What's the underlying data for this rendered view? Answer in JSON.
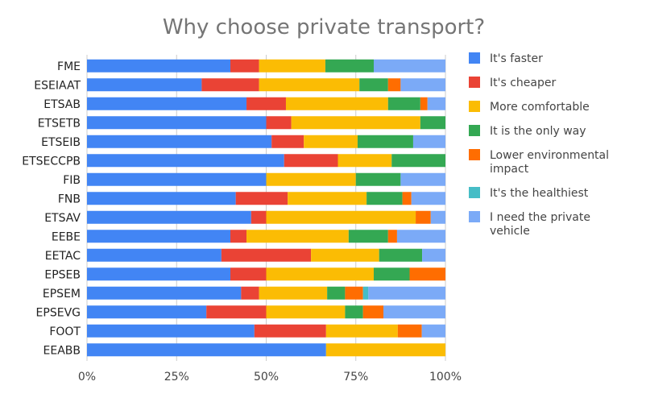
{
  "chart_data": {
    "type": "bar",
    "orientation": "horizontal",
    "stacked": "percent",
    "title": "Why choose private transport?",
    "xlabel": "",
    "ylabel": "",
    "xlim": [
      0,
      100
    ],
    "ticks": [
      "0%",
      "25%",
      "50%",
      "75%",
      "100%"
    ],
    "tick_values": [
      0,
      25,
      50,
      75,
      100
    ],
    "legend_position": "right",
    "categories": [
      "FME",
      "ESEIAAT",
      "ETSAB",
      "ETSETB",
      "ETSEIB",
      "ETSECCPB",
      "FIB",
      "FNB",
      "ETSAV",
      "EEBE",
      "EETAC",
      "EPSEB",
      "EPSEM",
      "EPSEVG",
      "FOOT",
      "EEABB"
    ],
    "series": [
      {
        "name": "It's faster",
        "color": "#4285F4",
        "values": [
          40,
          32,
          44.5,
          50,
          51.5,
          55,
          50,
          41.5,
          45.8,
          40,
          37.5,
          40,
          43,
          33.3,
          46.7,
          66.7
        ]
      },
      {
        "name": "It's cheaper",
        "color": "#EA4335",
        "values": [
          8,
          16,
          11,
          7,
          9,
          15,
          0,
          14.5,
          4.2,
          4.5,
          25,
          10,
          5,
          16.7,
          20,
          0
        ]
      },
      {
        "name": "More comfortable",
        "color": "#FBBC04",
        "values": [
          18.5,
          28,
          28.5,
          36,
          15,
          15,
          25,
          22,
          41.7,
          28.5,
          19,
          30,
          19,
          22,
          20,
          33.3
        ]
      },
      {
        "name": "It is the only way",
        "color": "#34A853",
        "values": [
          13.5,
          8,
          9,
          7,
          15.5,
          15,
          12.5,
          10,
          0,
          11,
          12,
          10,
          5,
          5,
          0,
          0
        ]
      },
      {
        "name": "Lower environmental impact",
        "color": "#FF6D01",
        "values": [
          0,
          3.5,
          2,
          0,
          0,
          0,
          0,
          2.5,
          4.2,
          2.5,
          0,
          10,
          5,
          5.7,
          6.7,
          0
        ]
      },
      {
        "name": "It's the healthiest",
        "color": "#46BDC6",
        "values": [
          0,
          0,
          0,
          0,
          0,
          0,
          0,
          0,
          0,
          0,
          0,
          0,
          1.5,
          0,
          0,
          0
        ]
      },
      {
        "name": "I need the private vehicle",
        "color": "#7BAAF7",
        "values": [
          20,
          12.5,
          5,
          0,
          9,
          0,
          12.5,
          9.5,
          4.1,
          13.5,
          6.5,
          0,
          21.5,
          17.3,
          6.6,
          0
        ]
      }
    ]
  }
}
